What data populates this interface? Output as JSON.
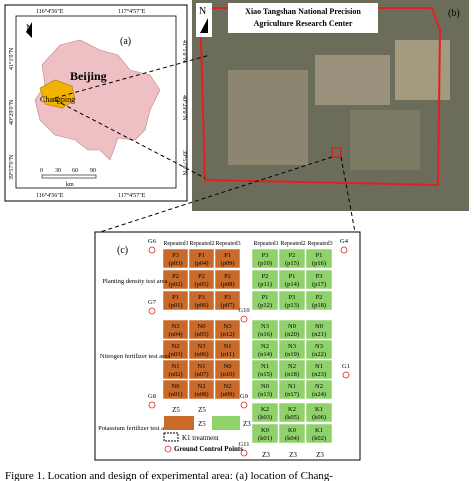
{
  "panel_a": {
    "label": "(a)",
    "north": "N",
    "city": "Beijing",
    "district": "Changping",
    "top_lon": [
      "116°4'56\"E",
      "117°4'57\"E"
    ],
    "bottom_lon": [
      "116°4'56\"E",
      "117°4'57\"E"
    ],
    "lat_left": [
      "41°1'0\"N",
      "40°29'0\"N",
      "39°57'0\"N"
    ],
    "lat_right": [
      "41°1'0\"N",
      "40°29'0\"N",
      "39°57'0\"N"
    ],
    "scale": [
      "0",
      "30",
      "60",
      "90"
    ],
    "scale_unit": "km"
  },
  "panel_b": {
    "label": "(b)",
    "north": "N",
    "title": [
      "Xiao Tangshan National Precision",
      "Agriculture Research Center"
    ]
  },
  "panel_c": {
    "label": "(c)",
    "repeats_left": [
      "Repeated1",
      "Repeated2",
      "Repeated3"
    ],
    "repeats_right": [
      "Repeated1",
      "Repeated2",
      "Repeated3"
    ],
    "areas": [
      "Planting density test area",
      "Nitrogen fertilizer test area",
      "Potassium fertilizer test area"
    ],
    "left_plots": [
      [
        [
          "P3",
          "(p03)"
        ],
        [
          "P1",
          "(p04)"
        ],
        [
          "P1",
          "(p09)"
        ]
      ],
      [
        [
          "P2",
          "(p02)"
        ],
        [
          "P2",
          "(p05)"
        ],
        [
          "P2",
          "(p08)"
        ]
      ],
      [
        [
          "P1",
          "(p01)"
        ],
        [
          "P3",
          "(p06)"
        ],
        [
          "P3",
          "(p07)"
        ]
      ],
      [
        [
          "N3",
          "(n04)"
        ],
        [
          "N0",
          "(n05)"
        ],
        [
          "N3",
          "(n12)"
        ]
      ],
      [
        [
          "N2",
          "(n03)"
        ],
        [
          "N3",
          "(n06)"
        ],
        [
          "N1",
          "(n11)"
        ]
      ],
      [
        [
          "N1",
          "(n02)"
        ],
        [
          "N1",
          "(n07)"
        ],
        [
          "N0",
          "(n10)"
        ]
      ],
      [
        [
          "N0",
          "(n01)"
        ],
        [
          "N2",
          "(n08)"
        ],
        [
          "N2",
          "(n09)"
        ]
      ]
    ],
    "right_plots": [
      [
        [
          "P3",
          "(p10)"
        ],
        [
          "P2",
          "(p15)"
        ],
        [
          "P1",
          "(p16)"
        ]
      ],
      [
        [
          "P2",
          "(p11)"
        ],
        [
          "P1",
          "(p14)"
        ],
        [
          "P3",
          "(p17)"
        ]
      ],
      [
        [
          "P1",
          "(p12)"
        ],
        [
          "P3",
          "(p13)"
        ],
        [
          "P2",
          "(p18)"
        ]
      ],
      [
        [
          "N3",
          "(n16)"
        ],
        [
          "N0",
          "(n20)"
        ],
        [
          "N0",
          "(n21)"
        ]
      ],
      [
        [
          "N2",
          "(n14)"
        ],
        [
          "N3",
          "(n19)"
        ],
        [
          "N3",
          "(n22)"
        ]
      ],
      [
        [
          "N1",
          "(n15)"
        ],
        [
          "N2",
          "(n18)"
        ],
        [
          "N1",
          "(n23)"
        ]
      ],
      [
        [
          "N0",
          "(n13)"
        ],
        [
          "N1",
          "(n17)"
        ],
        [
          "N2",
          "(n24)"
        ]
      ],
      [
        [
          "K2",
          "(k03)"
        ],
        [
          "K2",
          "(k05)"
        ],
        [
          "K1",
          "(k06)"
        ]
      ],
      [
        [
          "K0",
          "(k01)"
        ],
        [
          "K0",
          "(k04)"
        ],
        [
          "K1",
          "(k02)"
        ]
      ]
    ],
    "gcp": [
      "G6",
      "G4",
      "G7",
      "G10",
      "G1",
      "G8",
      "G9",
      "G11"
    ],
    "zones_left": [
      "Z5",
      "Z5"
    ],
    "zones_right": [
      "Z3",
      "Z3",
      "Z3"
    ],
    "legend": {
      "z5": "Z5",
      "z3": "Z3",
      "k1": "K1 treatment",
      "gcp": "Ground Control Points"
    }
  },
  "caption": "Figure 1. Location and design of experimental area: (a) location of Chang-"
}
